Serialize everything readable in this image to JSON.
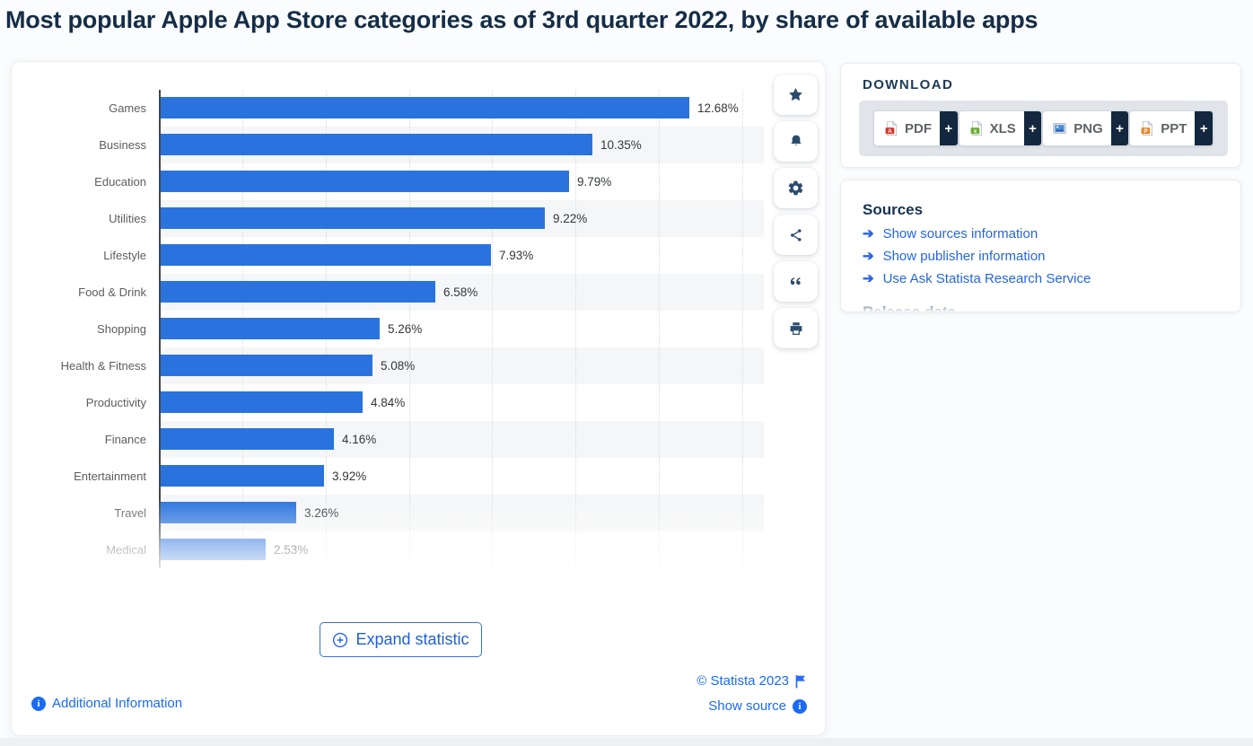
{
  "page": {
    "title": "Most popular Apple App Store categories as of 3rd quarter 2022, by share of available apps"
  },
  "chart_data": {
    "type": "bar",
    "orientation": "horizontal",
    "title": "Most popular Apple App Store categories as of 3rd quarter 2022, by share of available apps",
    "categories": [
      "Games",
      "Business",
      "Education",
      "Utilities",
      "Lifestyle",
      "Food & Drink",
      "Shopping",
      "Health & Fitness",
      "Productivity",
      "Finance",
      "Entertainment",
      "Travel",
      "Medical"
    ],
    "values": [
      12.68,
      10.35,
      9.79,
      9.22,
      7.93,
      6.58,
      5.26,
      5.08,
      4.84,
      4.16,
      3.92,
      3.26,
      2.53
    ],
    "value_labels": [
      "12.68%",
      "10.35%",
      "9.79%",
      "9.22%",
      "7.93%",
      "6.58%",
      "5.26%",
      "5.08%",
      "4.84%",
      "4.16%",
      "3.92%",
      "3.26%",
      "2.53%"
    ],
    "xlim": [
      0,
      14
    ],
    "gridlines_percent": [
      2,
      4,
      6,
      8,
      10,
      12,
      14
    ],
    "grid": true,
    "legend": false,
    "bar_color": "#2a73de",
    "stripe_color": "#f5f6f7",
    "note": "Last row (Medical) fades out at the bottom of the visible chart area"
  },
  "toolbar": {
    "items": [
      {
        "name": "favorite-star-icon"
      },
      {
        "name": "alert-bell-icon"
      },
      {
        "name": "settings-gear-icon"
      },
      {
        "name": "share-icon"
      },
      {
        "name": "cite-quote-icon"
      },
      {
        "name": "print-icon"
      }
    ]
  },
  "download": {
    "heading": "DOWNLOAD",
    "plus_label": "+",
    "buttons": [
      {
        "label": "PDF",
        "icon": "pdf-file-icon"
      },
      {
        "label": "XLS",
        "icon": "xls-file-icon"
      },
      {
        "label": "PNG",
        "icon": "png-file-icon"
      },
      {
        "label": "PPT",
        "icon": "ppt-file-icon"
      }
    ]
  },
  "sources": {
    "heading": "Sources",
    "links": [
      "Show sources information",
      "Show publisher information",
      "Use Ask Statista Research Service"
    ],
    "clipped_heading": "Release date"
  },
  "chart_footer": {
    "expand_label": "Expand statistic",
    "additional_info_label": "Additional Information",
    "copyright_label": "© Statista 2023",
    "show_source_label": "Show source"
  },
  "colors": {
    "bar_blue": "#2a73de",
    "navy": "#17334f",
    "link_blue": "#1a6af5",
    "source_link_blue": "#2566df",
    "plus_block_navy": "#13283e"
  }
}
